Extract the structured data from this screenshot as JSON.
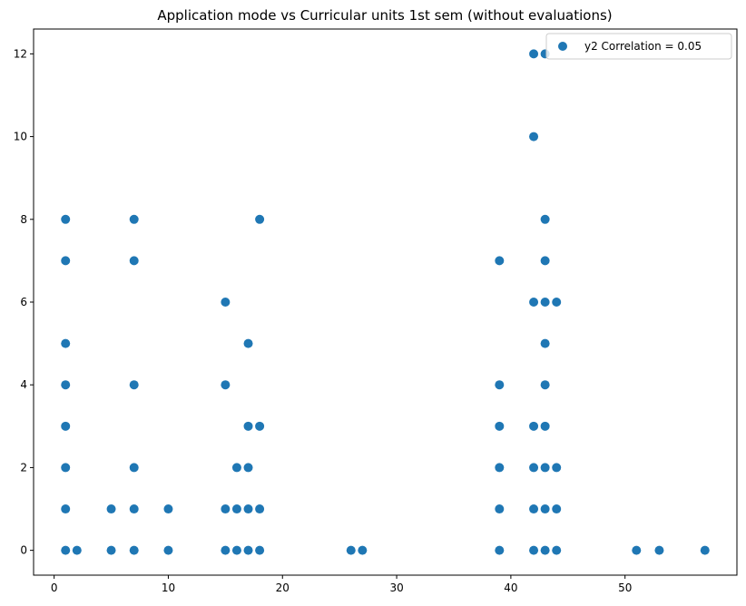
{
  "chart_data": {
    "type": "scatter",
    "title": "Application mode vs Curricular units 1st sem (without evaluations)",
    "xlabel": "",
    "ylabel": "",
    "xlim": [
      -1.8,
      59.8
    ],
    "ylim": [
      -0.6,
      12.6
    ],
    "x_ticks": [
      0,
      10,
      20,
      30,
      40,
      50
    ],
    "y_ticks": [
      0,
      2,
      4,
      6,
      8,
      10,
      12
    ],
    "grid": false,
    "legend_position": "top-right",
    "series": [
      {
        "name": "y2 Correlation = 0.05",
        "color": "#1f77b4",
        "points": [
          [
            1,
            0
          ],
          [
            1,
            1
          ],
          [
            1,
            2
          ],
          [
            1,
            3
          ],
          [
            1,
            4
          ],
          [
            1,
            5
          ],
          [
            1,
            7
          ],
          [
            1,
            8
          ],
          [
            2,
            0
          ],
          [
            5,
            0
          ],
          [
            5,
            1
          ],
          [
            7,
            0
          ],
          [
            7,
            1
          ],
          [
            7,
            2
          ],
          [
            7,
            4
          ],
          [
            7,
            7
          ],
          [
            7,
            8
          ],
          [
            10,
            0
          ],
          [
            10,
            1
          ],
          [
            15,
            0
          ],
          [
            15,
            1
          ],
          [
            15,
            4
          ],
          [
            15,
            6
          ],
          [
            16,
            0
          ],
          [
            16,
            1
          ],
          [
            16,
            2
          ],
          [
            17,
            0
          ],
          [
            17,
            1
          ],
          [
            17,
            2
          ],
          [
            17,
            3
          ],
          [
            17,
            5
          ],
          [
            18,
            0
          ],
          [
            18,
            1
          ],
          [
            18,
            3
          ],
          [
            18,
            8
          ],
          [
            26,
            0
          ],
          [
            27,
            0
          ],
          [
            39,
            0
          ],
          [
            39,
            1
          ],
          [
            39,
            2
          ],
          [
            39,
            3
          ],
          [
            39,
            4
          ],
          [
            39,
            7
          ],
          [
            42,
            0
          ],
          [
            42,
            1
          ],
          [
            42,
            2
          ],
          [
            42,
            3
          ],
          [
            42,
            6
          ],
          [
            42,
            10
          ],
          [
            42,
            12
          ],
          [
            43,
            0
          ],
          [
            43,
            1
          ],
          [
            43,
            2
          ],
          [
            43,
            3
          ],
          [
            43,
            4
          ],
          [
            43,
            5
          ],
          [
            43,
            6
          ],
          [
            43,
            7
          ],
          [
            43,
            8
          ],
          [
            43,
            12
          ],
          [
            44,
            0
          ],
          [
            44,
            1
          ],
          [
            44,
            2
          ],
          [
            44,
            6
          ],
          [
            51,
            0
          ],
          [
            53,
            0
          ],
          [
            57,
            0
          ]
        ]
      }
    ]
  }
}
